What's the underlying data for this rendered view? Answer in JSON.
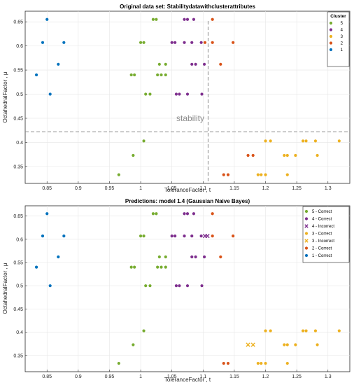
{
  "chart_data": [
    {
      "type": "scatter",
      "title": "Original data set: Stabilitydatawithclusterattributes",
      "xlabel": "ToleranceFactor , t",
      "ylabel": "OctahedralFactor , μ",
      "xlim": [
        0.815,
        1.335
      ],
      "ylim": [
        0.315,
        0.672
      ],
      "xticks": [
        "0.85",
        "0.9",
        "0.95",
        "1",
        "1.05",
        "1.1",
        "1.15",
        "1.2",
        "1.25",
        "1.3"
      ],
      "yticks": [
        "0.35",
        "0.4",
        "0.45",
        "0.5",
        "0.55",
        "0.6",
        "0.65"
      ],
      "grid": true,
      "legend": {
        "title": "Cluster",
        "position": "top-right"
      },
      "annotations": {
        "threshold_label": "stability",
        "horizontal_line_y": 0.422,
        "vertical_line_x": 1.108
      },
      "series": [
        {
          "name": "5",
          "color": "#77ac30",
          "marker": "dot",
          "points": [
            [
              1.02,
              0.655
            ],
            [
              1.025,
              0.655
            ],
            [
              1.0,
              0.607
            ],
            [
              1.005,
              0.607
            ],
            [
              0.985,
              0.54
            ],
            [
              0.99,
              0.54
            ],
            [
              1.027,
              0.54
            ],
            [
              1.033,
              0.54
            ],
            [
              1.04,
              0.54
            ],
            [
              1.03,
              0.562
            ],
            [
              1.04,
              0.562
            ],
            [
              1.008,
              0.5
            ],
            [
              1.015,
              0.5
            ],
            [
              1.005,
              0.403
            ],
            [
              0.988,
              0.373
            ],
            [
              0.965,
              0.333
            ]
          ]
        },
        {
          "name": "4",
          "color": "#7e2f8e",
          "marker": "dot",
          "points": [
            [
              1.07,
              0.655
            ],
            [
              1.075,
              0.655
            ],
            [
              1.085,
              0.655
            ],
            [
              1.05,
              0.607
            ],
            [
              1.055,
              0.607
            ],
            [
              1.07,
              0.607
            ],
            [
              1.082,
              0.607
            ],
            [
              1.097,
              0.607
            ],
            [
              1.082,
              0.562
            ],
            [
              1.088,
              0.562
            ],
            [
              1.102,
              0.562
            ],
            [
              1.057,
              0.5
            ],
            [
              1.062,
              0.5
            ],
            [
              1.075,
              0.5
            ],
            [
              1.098,
              0.5
            ]
          ]
        },
        {
          "name": "3",
          "color": "#edb120",
          "marker": "dot",
          "points": [
            [
              1.2,
              0.403
            ],
            [
              1.208,
              0.403
            ],
            [
              1.26,
              0.403
            ],
            [
              1.265,
              0.403
            ],
            [
              1.28,
              0.403
            ],
            [
              1.318,
              0.403
            ],
            [
              1.23,
              0.373
            ],
            [
              1.235,
              0.373
            ],
            [
              1.248,
              0.373
            ],
            [
              1.283,
              0.373
            ],
            [
              1.188,
              0.333
            ],
            [
              1.193,
              0.333
            ],
            [
              1.2,
              0.333
            ],
            [
              1.235,
              0.333
            ]
          ]
        },
        {
          "name": "2",
          "color": "#d95319",
          "marker": "dot",
          "points": [
            [
              1.115,
              0.655
            ],
            [
              1.103,
              0.607
            ],
            [
              1.115,
              0.607
            ],
            [
              1.148,
              0.607
            ],
            [
              1.128,
              0.562
            ],
            [
              1.172,
              0.373
            ],
            [
              1.18,
              0.373
            ],
            [
              1.133,
              0.333
            ],
            [
              1.14,
              0.333
            ]
          ]
        },
        {
          "name": "1",
          "color": "#0072bd",
          "marker": "dot",
          "points": [
            [
              0.85,
              0.655
            ],
            [
              0.843,
              0.607
            ],
            [
              0.877,
              0.607
            ],
            [
              0.868,
              0.562
            ],
            [
              0.833,
              0.54
            ],
            [
              0.855,
              0.5
            ]
          ]
        }
      ]
    },
    {
      "type": "scatter",
      "title": "Predictions: model 1.4 (Gaussian Naive Bayes)",
      "xlabel": "ToleranceFactor , t",
      "ylabel": "OctahedralFactor , μ",
      "xlim": [
        0.815,
        1.335
      ],
      "ylim": [
        0.315,
        0.672
      ],
      "xticks": [
        "0.85",
        "0.9",
        "0.95",
        "1",
        "1.05",
        "1.1",
        "1.15",
        "1.2",
        "1.25",
        "1.3"
      ],
      "yticks": [
        "0.35",
        "0.4",
        "0.45",
        "0.5",
        "0.55",
        "0.6",
        "0.65"
      ],
      "grid": true,
      "legend": {
        "position": "top-right"
      },
      "series": [
        {
          "name": "5 - Correct",
          "color": "#77ac30",
          "marker": "dot",
          "points": [
            [
              1.02,
              0.655
            ],
            [
              1.025,
              0.655
            ],
            [
              1.0,
              0.607
            ],
            [
              1.005,
              0.607
            ],
            [
              0.985,
              0.54
            ],
            [
              0.99,
              0.54
            ],
            [
              1.027,
              0.54
            ],
            [
              1.033,
              0.54
            ],
            [
              1.04,
              0.54
            ],
            [
              1.03,
              0.562
            ],
            [
              1.04,
              0.562
            ],
            [
              1.008,
              0.5
            ],
            [
              1.015,
              0.5
            ],
            [
              1.005,
              0.403
            ],
            [
              0.988,
              0.373
            ],
            [
              0.965,
              0.333
            ]
          ]
        },
        {
          "name": "4 - Correct",
          "color": "#7e2f8e",
          "marker": "dot",
          "points": [
            [
              1.07,
              0.655
            ],
            [
              1.075,
              0.655
            ],
            [
              1.085,
              0.655
            ],
            [
              1.05,
              0.607
            ],
            [
              1.055,
              0.607
            ],
            [
              1.07,
              0.607
            ],
            [
              1.082,
              0.607
            ],
            [
              1.097,
              0.607
            ],
            [
              1.082,
              0.562
            ],
            [
              1.088,
              0.562
            ],
            [
              1.102,
              0.562
            ],
            [
              1.057,
              0.5
            ],
            [
              1.062,
              0.5
            ],
            [
              1.075,
              0.5
            ],
            [
              1.098,
              0.5
            ]
          ]
        },
        {
          "name": "4 - Incorrect",
          "color": "#7e2f8e",
          "marker": "x",
          "points": [
            [
              1.103,
              0.607
            ],
            [
              1.107,
              0.607
            ]
          ]
        },
        {
          "name": "3 - Correct",
          "color": "#edb120",
          "marker": "dot",
          "points": [
            [
              1.2,
              0.403
            ],
            [
              1.208,
              0.403
            ],
            [
              1.26,
              0.403
            ],
            [
              1.265,
              0.403
            ],
            [
              1.28,
              0.403
            ],
            [
              1.318,
              0.403
            ],
            [
              1.23,
              0.373
            ],
            [
              1.235,
              0.373
            ],
            [
              1.248,
              0.373
            ],
            [
              1.283,
              0.373
            ],
            [
              1.188,
              0.333
            ],
            [
              1.193,
              0.333
            ],
            [
              1.2,
              0.333
            ],
            [
              1.235,
              0.333
            ]
          ]
        },
        {
          "name": "3 - Incorrect",
          "color": "#edb120",
          "marker": "x",
          "points": [
            [
              1.172,
              0.373
            ],
            [
              1.18,
              0.373
            ]
          ]
        },
        {
          "name": "2 - Correct",
          "color": "#d95319",
          "marker": "dot",
          "points": [
            [
              1.115,
              0.655
            ],
            [
              1.115,
              0.607
            ],
            [
              1.148,
              0.607
            ],
            [
              1.128,
              0.562
            ],
            [
              1.133,
              0.333
            ],
            [
              1.14,
              0.333
            ]
          ]
        },
        {
          "name": "1 - Correct",
          "color": "#0072bd",
          "marker": "dot",
          "points": [
            [
              0.85,
              0.655
            ],
            [
              0.843,
              0.607
            ],
            [
              0.877,
              0.607
            ],
            [
              0.868,
              0.562
            ],
            [
              0.833,
              0.54
            ],
            [
              0.855,
              0.5
            ]
          ]
        }
      ]
    }
  ]
}
